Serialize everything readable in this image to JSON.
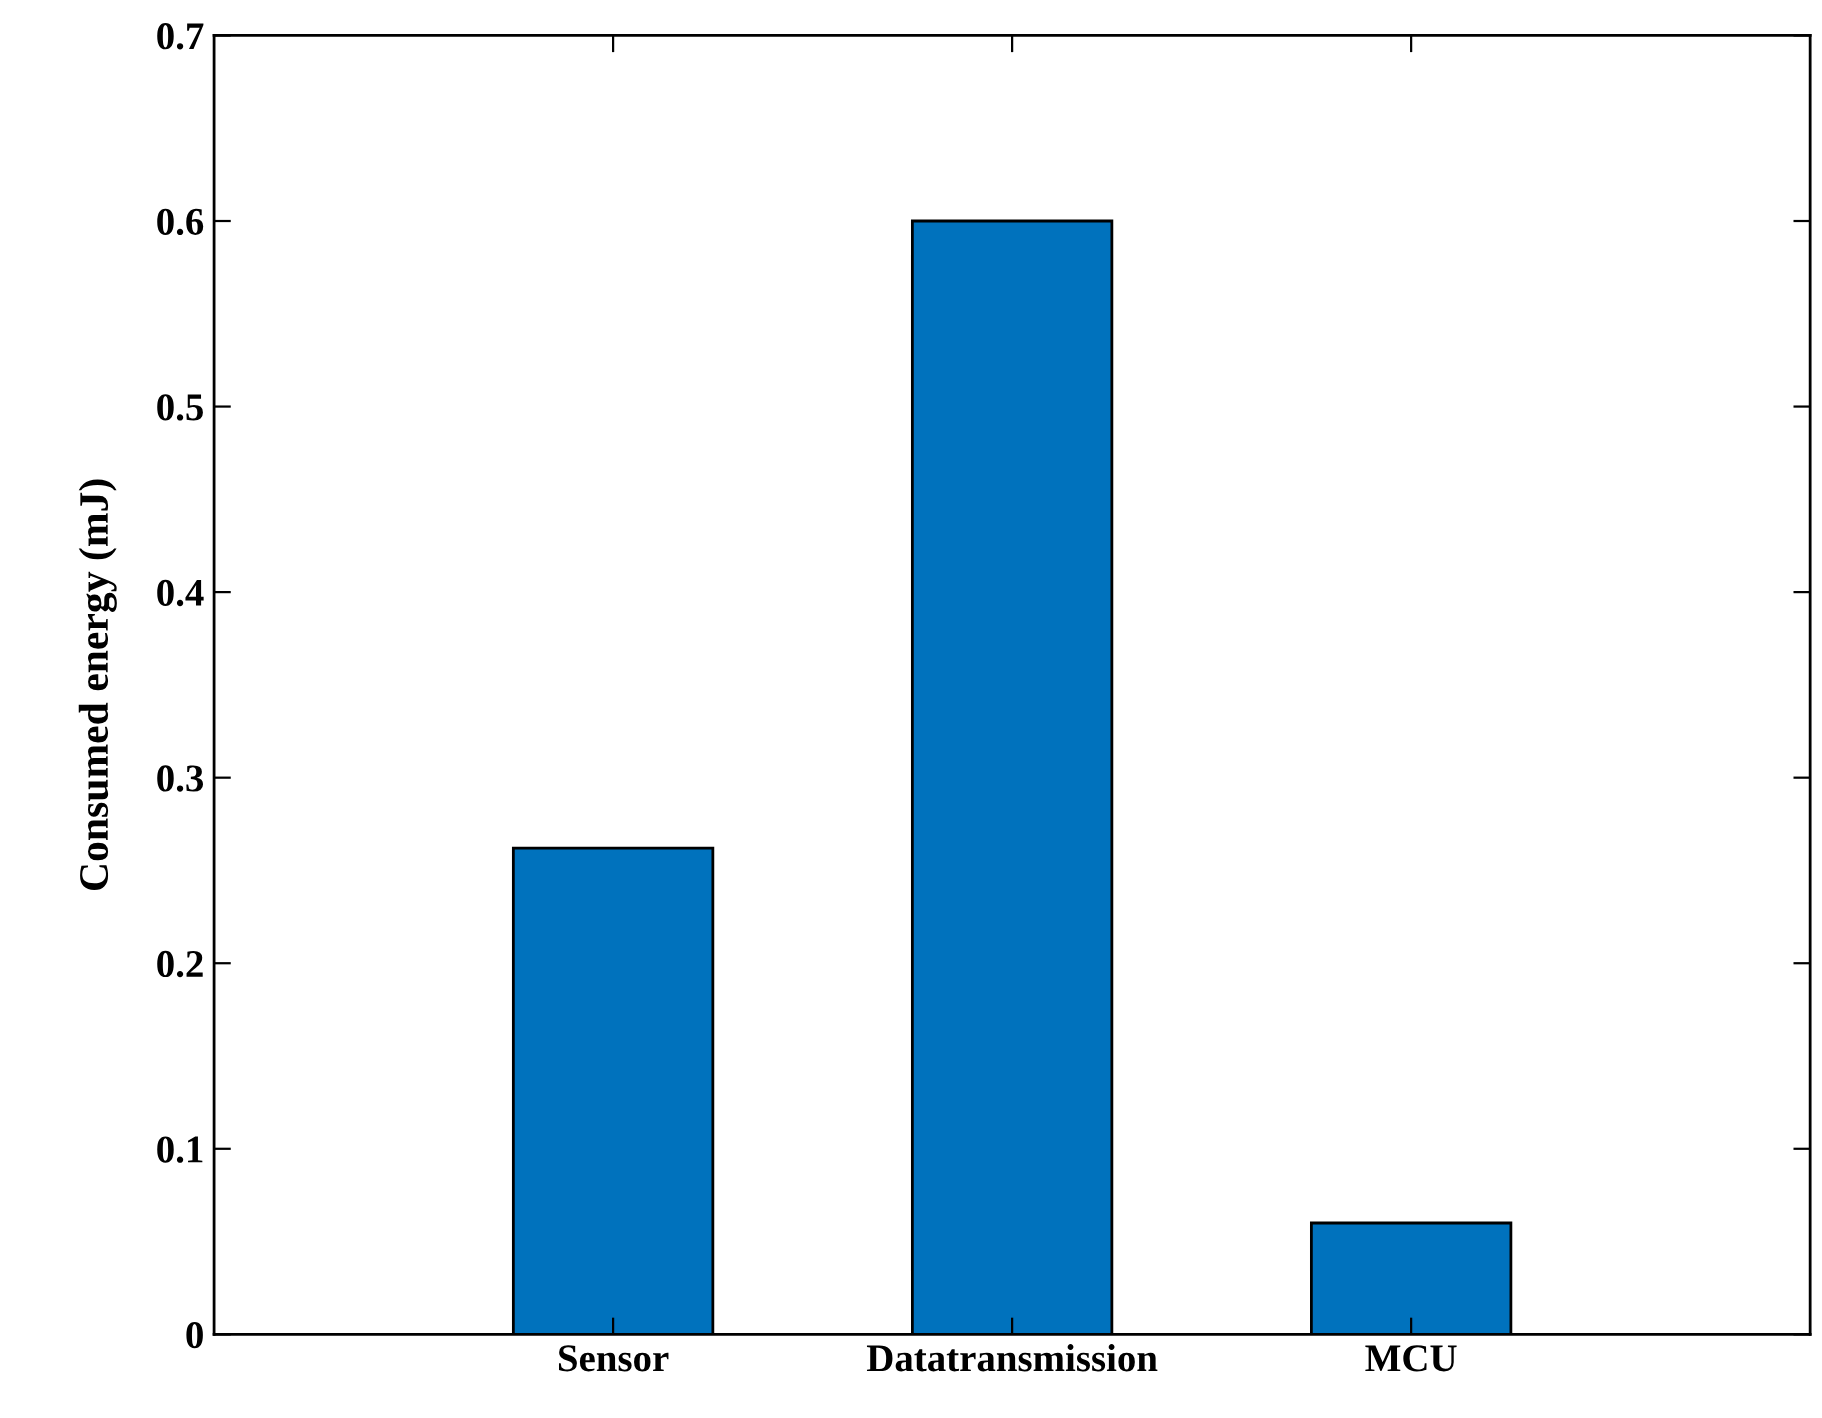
{
  "chart_data": {
    "type": "bar",
    "ylabel": "Consumed energy (mJ)",
    "categories": [
      "Sensor",
      "Datatransmission",
      "MCU"
    ],
    "values": [
      0.262,
      0.6,
      0.06
    ],
    "color": "#0072bd",
    "ylim": [
      0,
      0.7
    ],
    "yticks": [
      0,
      0.1,
      0.2,
      0.3,
      0.4,
      0.5,
      0.6,
      0.7
    ],
    "grid": false
  }
}
